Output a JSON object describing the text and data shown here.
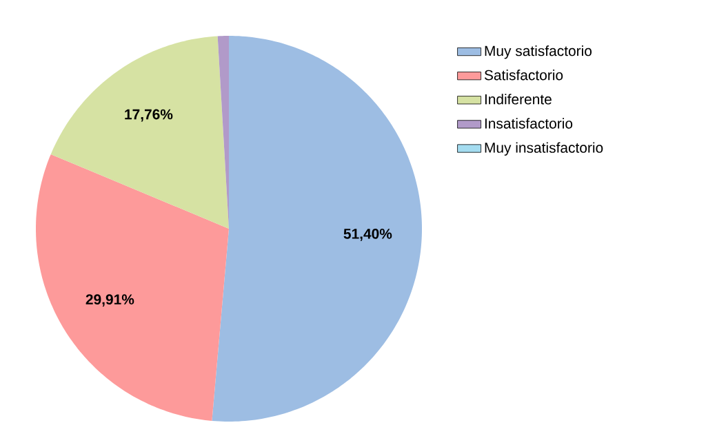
{
  "chart_data": {
    "type": "pie",
    "categories": [
      "Muy satisfactorio",
      "Satisfactorio",
      "Indiferente",
      "Insatisfactorio",
      "Muy insatisfactorio"
    ],
    "values": [
      51.4,
      29.91,
      17.76,
      0.93,
      0
    ],
    "value_labels": [
      "51,40%",
      "29,91%",
      "17,76%",
      null,
      null
    ],
    "colors": [
      "#9dbde3",
      "#fd9a9a",
      "#d6e2a3",
      "#b19ac9",
      "#a4dcf0"
    ],
    "legend": "right"
  }
}
